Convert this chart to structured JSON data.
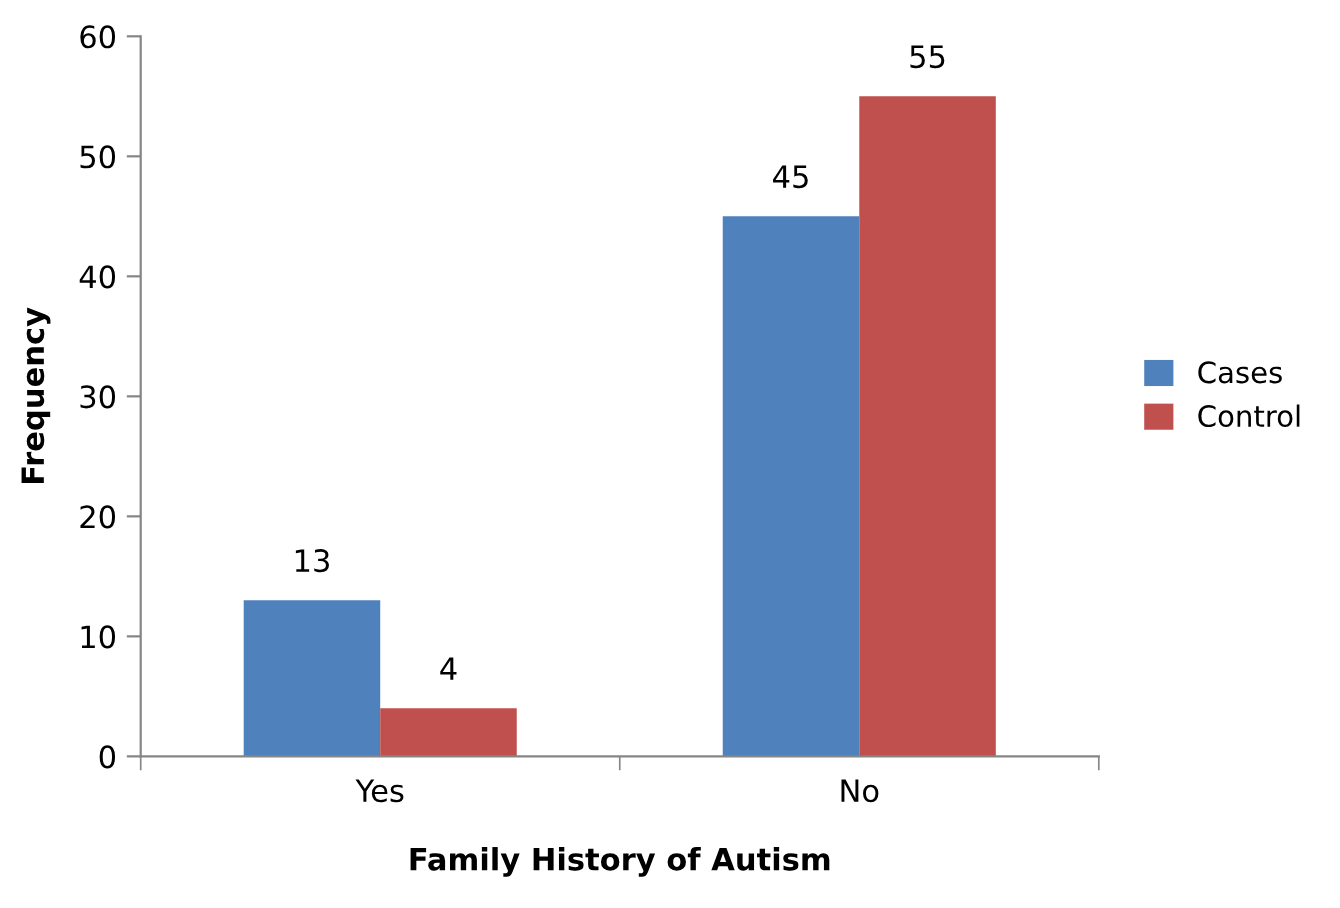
{
  "chart_data": {
    "type": "bar",
    "xlabel": "Family History of Autism",
    "ylabel": "Frequency",
    "categories": [
      "Yes",
      "No"
    ],
    "series": [
      {
        "name": "Cases",
        "color": "#4f81bd",
        "values": [
          13,
          45
        ]
      },
      {
        "name": "Control",
        "color": "#c0504d",
        "values": [
          4,
          55
        ]
      }
    ],
    "ylim": [
      0,
      60
    ],
    "yticks": [
      0,
      10,
      20,
      30,
      40,
      50,
      60
    ],
    "data_labels": true,
    "legend": "right",
    "grid": false
  }
}
